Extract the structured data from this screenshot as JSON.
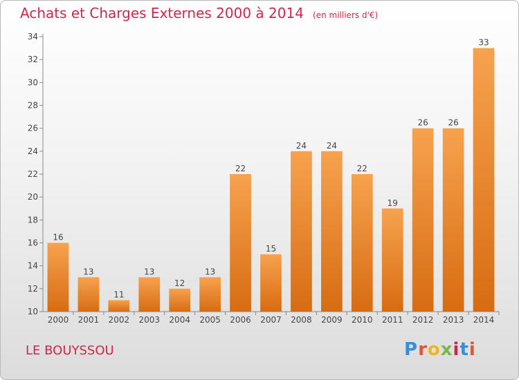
{
  "header": {
    "title": "Achats et Charges Externes 2000 à 2014",
    "unit": "(en milliers d'€)"
  },
  "footer": {
    "town": "LE BOUYSSOU",
    "brand": {
      "letters": [
        "P",
        "r",
        "o",
        "x",
        "i",
        "t",
        "i"
      ],
      "colors": [
        "#3a8ed6",
        "#e5542e",
        "#f0b423",
        "#7ab648",
        "#c8284c",
        "#3a8ed6",
        "#e5542e"
      ]
    }
  },
  "chart_data": {
    "type": "bar",
    "title": "Achats et Charges Externes 2000 à 2014",
    "xlabel": "",
    "ylabel": "",
    "categories": [
      "2000",
      "2001",
      "2002",
      "2003",
      "2004",
      "2005",
      "2006",
      "2007",
      "2008",
      "2009",
      "2010",
      "2011",
      "2012",
      "2013",
      "2014"
    ],
    "values": [
      16,
      13,
      11,
      13,
      12,
      13,
      22,
      15,
      24,
      24,
      22,
      19,
      26,
      26,
      33
    ],
    "ylim": [
      10,
      34
    ],
    "yticks": [
      10,
      12,
      14,
      16,
      18,
      20,
      22,
      24,
      26,
      28,
      30,
      32,
      34
    ],
    "grid": false,
    "colors": {
      "bar_top": "#f7a24e",
      "bar_bottom": "#d76c12",
      "axis": "#888888",
      "label": "#444444"
    }
  }
}
